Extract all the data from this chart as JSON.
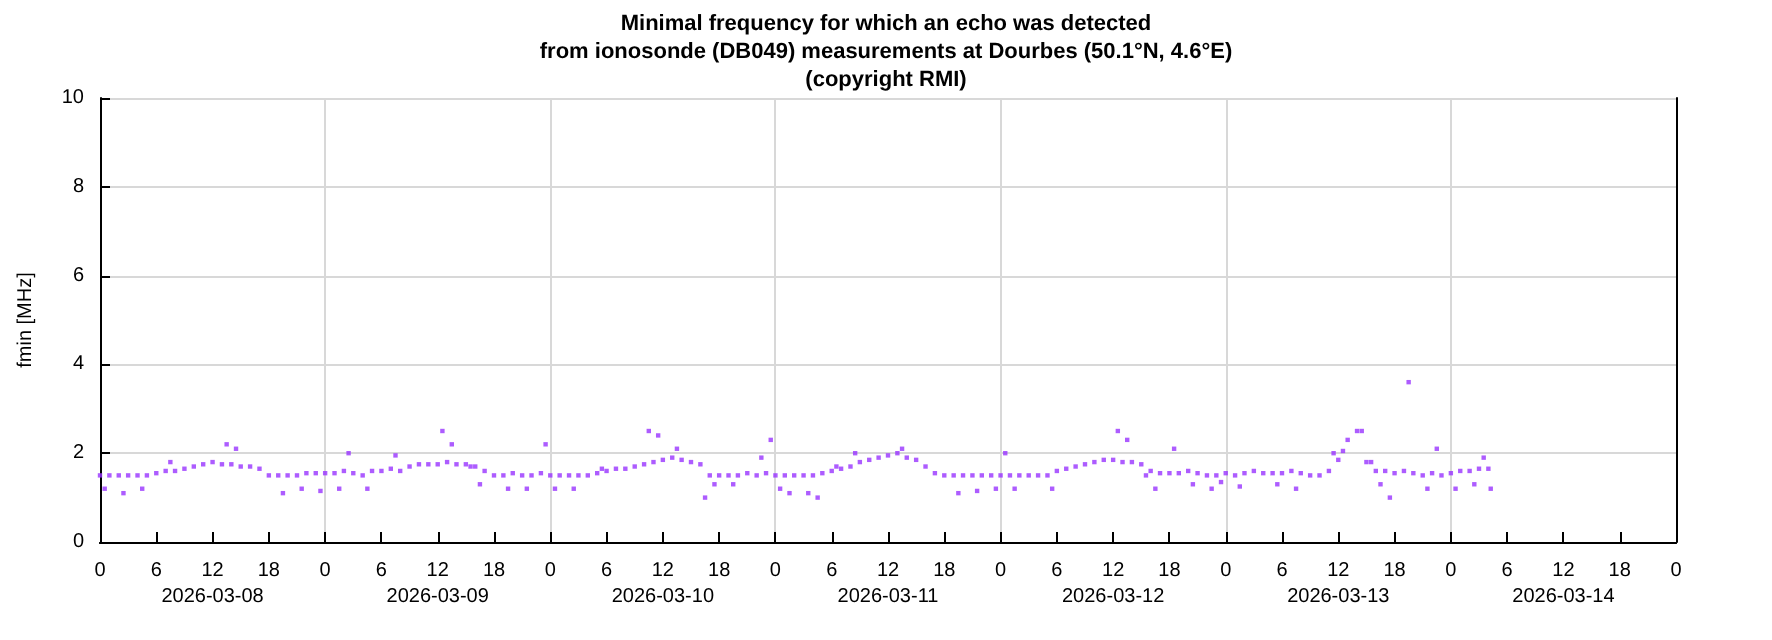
{
  "chart_data": {
    "type": "scatter",
    "title": "Minimal frequency for which an echo was detected\nfrom ionosonde (DB049) measurements at Dourbes (50.1°N, 4.6°E)\n(copyright RMI)",
    "ylabel": "fmin [MHz]",
    "marker": "square",
    "grid": true,
    "xlim": [
      "2026-03-08T00:00",
      "2026-03-15T00:00"
    ],
    "xticks": [
      {
        "value": "2026-03-08T00:00",
        "label": "0"
      },
      {
        "value": "2026-03-08T06:00",
        "label": "6"
      },
      {
        "value": "2026-03-08T12:00",
        "label": "12\n2026-03-08"
      },
      {
        "value": "2026-03-08T18:00",
        "label": "18"
      },
      {
        "value": "2026-03-09T00:00",
        "label": "0"
      },
      {
        "value": "2026-03-09T06:00",
        "label": "6"
      },
      {
        "value": "2026-03-09T12:00",
        "label": "12\n2026-03-09"
      },
      {
        "value": "2026-03-09T18:00",
        "label": "18"
      },
      {
        "value": "2026-03-10T00:00",
        "label": "0"
      },
      {
        "value": "2026-03-10T06:00",
        "label": "6"
      },
      {
        "value": "2026-03-10T12:00",
        "label": "12\n2026-03-10"
      },
      {
        "value": "2026-03-10T18:00",
        "label": "18"
      },
      {
        "value": "2026-03-11T00:00",
        "label": "0"
      },
      {
        "value": "2026-03-11T06:00",
        "label": "6"
      },
      {
        "value": "2026-03-11T12:00",
        "label": "12\n2026-03-11"
      },
      {
        "value": "2026-03-11T18:00",
        "label": "18"
      },
      {
        "value": "2026-03-12T00:00",
        "label": "0"
      },
      {
        "value": "2026-03-12T06:00",
        "label": "6"
      },
      {
        "value": "2026-03-12T12:00",
        "label": "12\n2026-03-12"
      },
      {
        "value": "2026-03-12T18:00",
        "label": "18"
      },
      {
        "value": "2026-03-13T00:00",
        "label": "0"
      },
      {
        "value": "2026-03-13T06:00",
        "label": "6"
      },
      {
        "value": "2026-03-13T12:00",
        "label": "12\n2026-03-13"
      },
      {
        "value": "2026-03-13T18:00",
        "label": "18"
      },
      {
        "value": "2026-03-14T00:00",
        "label": "0"
      },
      {
        "value": "2026-03-14T06:00",
        "label": "6"
      },
      {
        "value": "2026-03-14T12:00",
        "label": "12\n2026-03-14"
      },
      {
        "value": "2026-03-14T18:00",
        "label": "18"
      },
      {
        "value": "2026-03-15T00:00",
        "label": "0"
      }
    ],
    "ylim": [
      0,
      10
    ],
    "yticks": [
      0,
      2,
      4,
      6,
      8,
      10
    ],
    "series": [
      {
        "color": "#9933ff",
        "x": [
          "2026-03-08T00:00",
          "2026-03-08T01:00",
          "2026-03-08T02:00",
          "2026-03-08T03:00",
          "2026-03-08T04:00",
          "2026-03-08T05:00",
          "2026-03-08T06:00",
          "2026-03-08T07:00",
          "2026-03-08T08:00",
          "2026-03-08T09:00",
          "2026-03-08T10:00",
          "2026-03-08T11:00",
          "2026-03-08T12:00",
          "2026-03-08T13:00",
          "2026-03-08T14:00",
          "2026-03-08T15:00",
          "2026-03-08T16:00",
          "2026-03-08T17:00",
          "2026-03-08T18:00",
          "2026-03-08T19:00",
          "2026-03-08T20:00",
          "2026-03-08T21:00",
          "2026-03-08T22:00",
          "2026-03-08T23:00",
          "2026-03-09T00:00",
          "2026-03-09T01:00",
          "2026-03-09T02:00",
          "2026-03-09T03:00",
          "2026-03-09T04:00",
          "2026-03-09T05:00",
          "2026-03-09T06:00",
          "2026-03-09T07:00",
          "2026-03-09T08:00",
          "2026-03-09T09:00",
          "2026-03-09T10:00",
          "2026-03-09T11:00",
          "2026-03-09T12:00",
          "2026-03-09T13:00",
          "2026-03-09T14:00",
          "2026-03-09T15:00",
          "2026-03-09T16:00",
          "2026-03-09T17:00",
          "2026-03-09T18:00",
          "2026-03-09T19:00",
          "2026-03-09T20:00",
          "2026-03-09T21:00",
          "2026-03-09T22:00",
          "2026-03-09T23:00",
          "2026-03-10T00:00",
          "2026-03-10T01:00",
          "2026-03-10T02:00",
          "2026-03-10T03:00",
          "2026-03-10T04:00",
          "2026-03-10T05:00",
          "2026-03-10T06:00",
          "2026-03-10T07:00",
          "2026-03-10T08:00",
          "2026-03-10T09:00",
          "2026-03-10T10:00",
          "2026-03-10T11:00",
          "2026-03-10T12:00",
          "2026-03-10T13:00",
          "2026-03-10T14:00",
          "2026-03-10T15:00",
          "2026-03-10T16:00",
          "2026-03-10T17:00",
          "2026-03-10T18:00",
          "2026-03-10T19:00",
          "2026-03-10T20:00",
          "2026-03-10T21:00",
          "2026-03-10T22:00",
          "2026-03-10T23:00",
          "2026-03-11T00:00",
          "2026-03-11T01:00",
          "2026-03-11T02:00",
          "2026-03-11T03:00",
          "2026-03-11T04:00",
          "2026-03-11T05:00",
          "2026-03-11T06:00",
          "2026-03-11T07:00",
          "2026-03-11T08:00",
          "2026-03-11T09:00",
          "2026-03-11T10:00",
          "2026-03-11T11:00",
          "2026-03-11T12:00",
          "2026-03-11T13:00",
          "2026-03-11T14:00",
          "2026-03-11T15:00",
          "2026-03-11T16:00",
          "2026-03-11T17:00",
          "2026-03-11T18:00",
          "2026-03-11T19:00",
          "2026-03-11T20:00",
          "2026-03-11T21:00",
          "2026-03-11T22:00",
          "2026-03-11T23:00",
          "2026-03-12T00:00",
          "2026-03-12T01:00",
          "2026-03-12T02:00",
          "2026-03-12T03:00",
          "2026-03-12T04:00",
          "2026-03-12T05:00",
          "2026-03-12T06:00",
          "2026-03-12T07:00",
          "2026-03-12T08:00",
          "2026-03-12T09:00",
          "2026-03-12T10:00",
          "2026-03-12T11:00",
          "2026-03-12T12:00",
          "2026-03-12T13:00",
          "2026-03-12T14:00",
          "2026-03-12T15:00",
          "2026-03-12T16:00",
          "2026-03-12T17:00",
          "2026-03-12T18:00",
          "2026-03-12T19:00",
          "2026-03-12T20:00",
          "2026-03-12T21:00",
          "2026-03-12T22:00",
          "2026-03-12T23:00",
          "2026-03-13T00:00",
          "2026-03-13T01:00",
          "2026-03-13T02:00",
          "2026-03-13T03:00",
          "2026-03-13T04:00",
          "2026-03-13T05:00",
          "2026-03-13T06:00",
          "2026-03-13T07:00",
          "2026-03-13T08:00",
          "2026-03-13T09:00",
          "2026-03-13T10:00",
          "2026-03-13T11:00",
          "2026-03-13T12:00",
          "2026-03-13T13:00",
          "2026-03-13T14:00",
          "2026-03-13T15:00",
          "2026-03-13T16:00",
          "2026-03-13T17:00",
          "2026-03-13T18:00",
          "2026-03-13T19:00",
          "2026-03-13T20:00",
          "2026-03-13T21:00",
          "2026-03-13T22:00",
          "2026-03-13T23:00",
          "2026-03-14T00:00",
          "2026-03-14T01:00",
          "2026-03-14T02:00",
          "2026-03-14T03:00",
          "2026-03-14T04:00"
        ],
        "values": [
          1.5,
          1.5,
          1.5,
          1.5,
          1.5,
          1.5,
          1.55,
          1.6,
          1.6,
          1.65,
          1.7,
          1.75,
          1.8,
          1.75,
          1.75,
          1.7,
          1.7,
          1.65,
          1.5,
          1.5,
          1.5,
          1.5,
          1.55,
          1.55,
          1.55,
          1.55,
          1.6,
          1.55,
          1.5,
          1.6,
          1.6,
          1.65,
          1.6,
          1.7,
          1.75,
          1.75,
          1.75,
          1.8,
          1.75,
          1.75,
          1.7,
          1.6,
          1.5,
          1.5,
          1.55,
          1.5,
          1.5,
          1.55,
          1.5,
          1.5,
          1.5,
          1.5,
          1.5,
          1.55,
          1.6,
          1.65,
          1.65,
          1.7,
          1.75,
          1.8,
          1.85,
          1.9,
          1.85,
          1.8,
          1.75,
          1.5,
          1.5,
          1.5,
          1.5,
          1.55,
          1.5,
          1.55,
          1.5,
          1.5,
          1.5,
          1.5,
          1.5,
          1.55,
          1.6,
          1.65,
          1.7,
          1.8,
          1.85,
          1.9,
          1.95,
          2.0,
          1.9,
          1.85,
          1.7,
          1.55,
          1.5,
          1.5,
          1.5,
          1.5,
          1.5,
          1.5,
          1.5,
          1.5,
          1.5,
          1.5,
          1.5,
          1.5,
          1.6,
          1.65,
          1.7,
          1.75,
          1.8,
          1.85,
          1.85,
          1.8,
          1.8,
          1.75,
          1.6,
          1.55,
          1.55,
          1.55,
          1.6,
          1.55,
          1.5,
          1.5,
          1.55,
          1.5,
          1.55,
          1.6,
          1.55,
          1.55,
          1.55,
          1.6,
          1.55,
          1.5,
          1.5,
          1.6,
          1.85,
          2.3,
          2.5,
          1.8,
          1.6,
          1.6,
          1.55,
          1.6,
          1.55,
          1.5,
          1.55,
          1.5,
          1.55,
          1.6,
          1.6,
          1.65,
          1.65
        ]
      },
      {
        "color": "#9933ff",
        "x": [
          "2026-03-08T00:30",
          "2026-03-08T02:30",
          "2026-03-08T04:30",
          "2026-03-08T07:30",
          "2026-03-08T13:30",
          "2026-03-08T14:30",
          "2026-03-08T19:30",
          "2026-03-08T21:30",
          "2026-03-08T23:30",
          "2026-03-09T01:30",
          "2026-03-09T02:30",
          "2026-03-09T04:30",
          "2026-03-09T07:30",
          "2026-03-09T12:30",
          "2026-03-09T13:30",
          "2026-03-09T15:30",
          "2026-03-09T16:30",
          "2026-03-09T19:30",
          "2026-03-09T21:30",
          "2026-03-09T23:30",
          "2026-03-10T00:30",
          "2026-03-10T02:30",
          "2026-03-10T05:30",
          "2026-03-10T10:30",
          "2026-03-10T11:30",
          "2026-03-10T13:30",
          "2026-03-10T16:30",
          "2026-03-10T17:30",
          "2026-03-10T19:30",
          "2026-03-10T22:30",
          "2026-03-10T23:30",
          "2026-03-11T00:30",
          "2026-03-11T01:30",
          "2026-03-11T03:30",
          "2026-03-11T04:30",
          "2026-03-11T06:30",
          "2026-03-11T08:30",
          "2026-03-11T13:30",
          "2026-03-11T19:30",
          "2026-03-11T21:30",
          "2026-03-11T23:30",
          "2026-03-12T00:30",
          "2026-03-12T01:30",
          "2026-03-12T05:30",
          "2026-03-12T12:30",
          "2026-03-12T13:30",
          "2026-03-12T15:30",
          "2026-03-12T16:30",
          "2026-03-12T18:30",
          "2026-03-12T20:30",
          "2026-03-12T22:30",
          "2026-03-12T23:30",
          "2026-03-13T01:30",
          "2026-03-13T05:30",
          "2026-03-13T07:30",
          "2026-03-13T11:30",
          "2026-03-13T12:30",
          "2026-03-13T14:30",
          "2026-03-13T15:30",
          "2026-03-13T16:30",
          "2026-03-13T17:30",
          "2026-03-13T19:30",
          "2026-03-13T21:30",
          "2026-03-13T22:30",
          "2026-03-14T00:30",
          "2026-03-14T02:30",
          "2026-03-14T03:30",
          "2026-03-14T04:15"
        ],
        "values": [
          1.2,
          1.1,
          1.2,
          1.8,
          2.2,
          2.1,
          1.1,
          1.2,
          1.15,
          1.2,
          2.0,
          1.2,
          1.95,
          2.5,
          2.2,
          1.7,
          1.3,
          1.2,
          1.2,
          2.2,
          1.2,
          1.2,
          1.65,
          2.5,
          2.4,
          2.1,
          1.0,
          1.3,
          1.3,
          1.9,
          2.3,
          1.2,
          1.1,
          1.1,
          1.0,
          1.7,
          2.0,
          2.1,
          1.1,
          1.15,
          1.2,
          2.0,
          1.2,
          1.2,
          2.5,
          2.3,
          1.5,
          1.2,
          2.1,
          1.3,
          1.2,
          1.35,
          1.25,
          1.3,
          1.2,
          2.0,
          2.05,
          2.5,
          1.8,
          1.3,
          1.0,
          3.6,
          1.2,
          2.1,
          1.2,
          1.3,
          1.9,
          1.2
        ]
      }
    ]
  }
}
